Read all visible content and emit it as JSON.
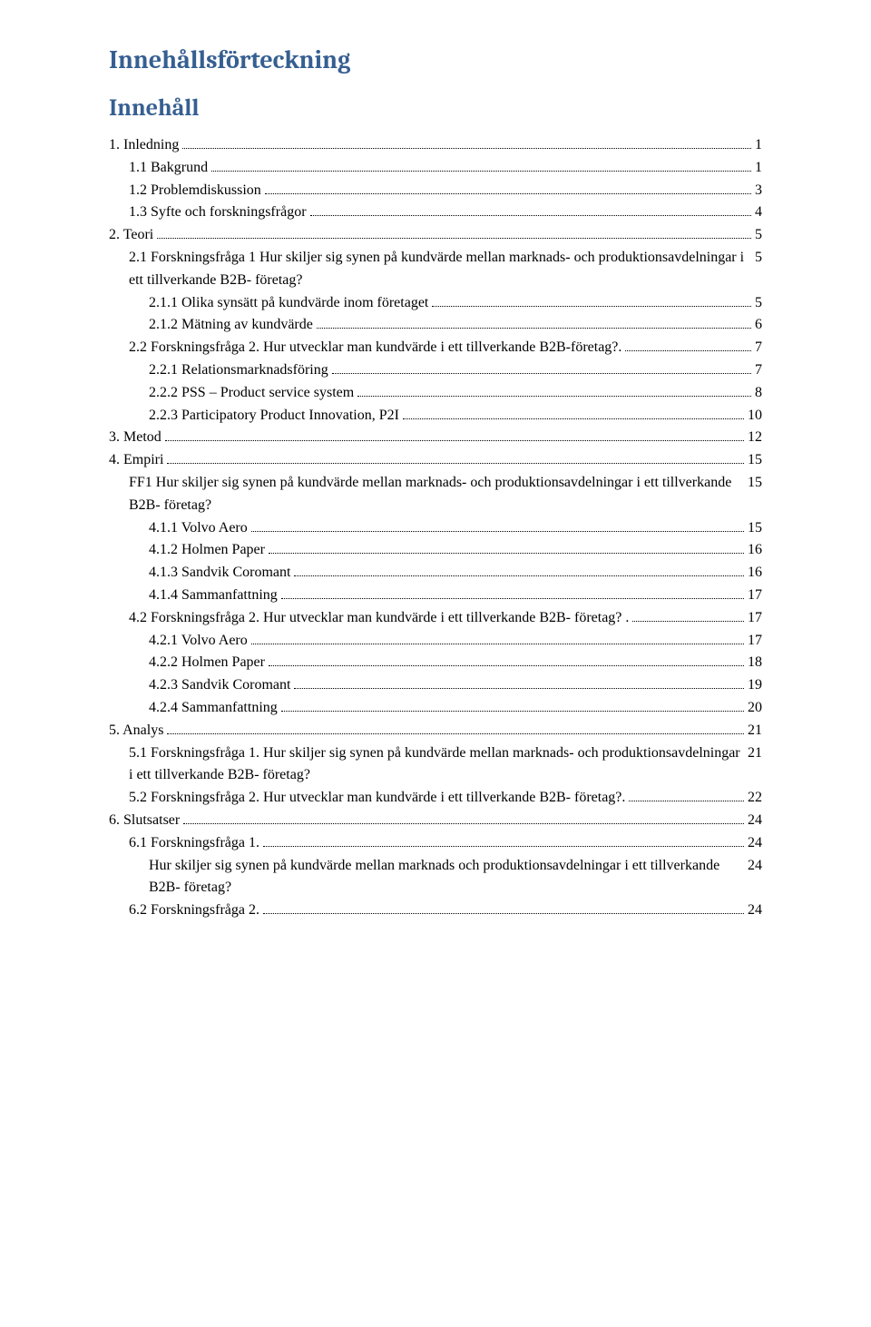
{
  "heading_main": "Innehållsförteckning",
  "heading_sub": "Innehåll",
  "colors": {
    "heading": "#365f91",
    "body_text": "#000000",
    "background": "#ffffff"
  },
  "typography": {
    "heading_font": "Cambria",
    "body_font": "Times New Roman",
    "heading_main_size_pt": 20,
    "heading_sub_size_pt": 19,
    "body_size_pt": 12
  },
  "toc": [
    {
      "label": "1. Inledning",
      "page": "1",
      "indent": 0
    },
    {
      "label": "1.1 Bakgrund",
      "page": "1",
      "indent": 1
    },
    {
      "label": "1.2 Problemdiskussion",
      "page": "3",
      "indent": 1
    },
    {
      "label": "1.3 Syfte och forskningsfrågor",
      "page": "4",
      "indent": 1
    },
    {
      "label": "2. Teori",
      "page": "5",
      "indent": 0
    },
    {
      "label": "2.1 Forskningsfråga 1 Hur skiljer sig synen på kundvärde mellan marknads- och produktionsavdelningar i ett tillverkande B2B- företag?",
      "page": "5",
      "indent": 1
    },
    {
      "label": "2.1.1 Olika synsätt på kundvärde inom företaget",
      "page": "5",
      "indent": 2
    },
    {
      "label": "2.1.2 Mätning av kundvärde",
      "page": "6",
      "indent": 2
    },
    {
      "label": "2.2 Forskningsfråga 2. Hur utvecklar man kundvärde i ett tillverkande B2B-företag?.",
      "page": "7",
      "indent": 1
    },
    {
      "label": "2.2.1 Relationsmarknadsföring",
      "page": "7",
      "indent": 2
    },
    {
      "label": "2.2.2 PSS – Product service system",
      "page": "8",
      "indent": 2
    },
    {
      "label": "2.2.3 Participatory Product Innovation, P2I",
      "page": "10",
      "indent": 2
    },
    {
      "label": "3. Metod",
      "page": "12",
      "indent": 0
    },
    {
      "label": "4. Empiri",
      "page": "15",
      "indent": 0
    },
    {
      "label": "FF1 Hur skiljer sig synen på kundvärde mellan marknads- och produktionsavdelningar i ett tillverkande B2B- företag?",
      "page": "15",
      "indent": 1
    },
    {
      "label": "4.1.1 Volvo Aero",
      "page": "15",
      "indent": 2
    },
    {
      "label": "4.1.2 Holmen Paper",
      "page": "16",
      "indent": 2
    },
    {
      "label": "4.1.3 Sandvik Coromant",
      "page": "16",
      "indent": 2
    },
    {
      "label": "4.1.4 Sammanfattning",
      "page": "17",
      "indent": 2
    },
    {
      "label": "4.2 Forskningsfråga 2. Hur utvecklar man kundvärde i ett tillverkande B2B- företag? .",
      "page": "17",
      "indent": 1
    },
    {
      "label": "4.2.1 Volvo Aero",
      "page": "17",
      "indent": 2
    },
    {
      "label": "4.2.2 Holmen Paper",
      "page": "18",
      "indent": 2
    },
    {
      "label": "4.2.3 Sandvik Coromant",
      "page": "19",
      "indent": 2
    },
    {
      "label": "4.2.4 Sammanfattning",
      "page": "20",
      "indent": 2
    },
    {
      "label": "5. Analys",
      "page": "21",
      "indent": 0
    },
    {
      "label": "5.1 Forskningsfråga 1. Hur skiljer sig synen på kundvärde mellan marknads- och produktionsavdelningar i ett tillverkande B2B- företag?",
      "page": "21",
      "indent": 1
    },
    {
      "label": "5.2 Forskningsfråga 2. Hur utvecklar man kundvärde i ett tillverkande B2B- företag?.",
      "page": "22",
      "indent": 1
    },
    {
      "label": "6. Slutsatser",
      "page": "24",
      "indent": 0
    },
    {
      "label": "6.1 Forskningsfråga 1.",
      "page": "24",
      "indent": 1
    },
    {
      "label": "Hur skiljer sig synen på kundvärde mellan marknads och produktionsavdelningar i ett tillverkande B2B- företag?",
      "page": "24",
      "indent": 2
    },
    {
      "label": "6.2 Forskningsfråga 2.",
      "page": "24",
      "indent": 1
    }
  ]
}
